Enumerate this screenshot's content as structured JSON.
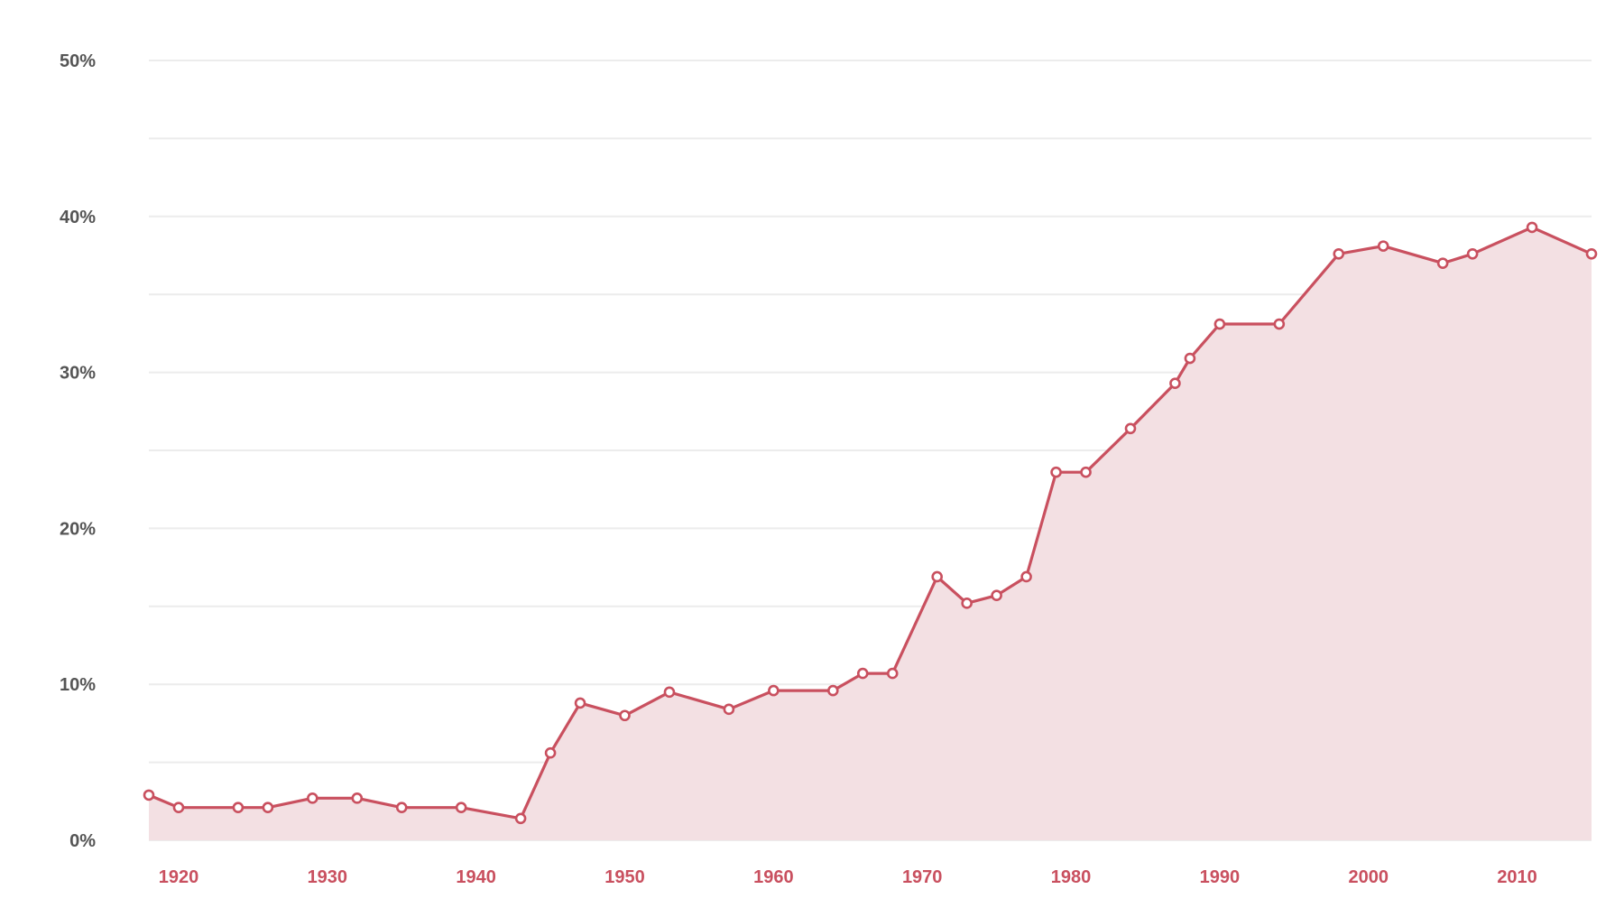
{
  "chart_data": {
    "type": "area",
    "title": "",
    "xlabel": "",
    "ylabel": "",
    "xlim": [
      1918,
      2015
    ],
    "ylim": [
      0,
      50
    ],
    "grid": true,
    "legend": "none",
    "y_ticks": [
      {
        "value": 0,
        "label": "0%"
      },
      {
        "value": 10,
        "label": "10%"
      },
      {
        "value": 20,
        "label": "20%"
      },
      {
        "value": 30,
        "label": "30%"
      },
      {
        "value": 40,
        "label": "40%"
      },
      {
        "value": 50,
        "label": "50%"
      }
    ],
    "y_minor_gridlines": [
      5,
      15,
      25,
      35,
      45
    ],
    "x_ticks": [
      {
        "value": 1920,
        "label": "1920"
      },
      {
        "value": 1930,
        "label": "1930"
      },
      {
        "value": 1940,
        "label": "1940"
      },
      {
        "value": 1950,
        "label": "1950"
      },
      {
        "value": 1960,
        "label": "1960"
      },
      {
        "value": 1970,
        "label": "1970"
      },
      {
        "value": 1980,
        "label": "1980"
      },
      {
        "value": 1990,
        "label": "1990"
      },
      {
        "value": 2000,
        "label": "2000"
      },
      {
        "value": 2010,
        "label": "2010"
      }
    ],
    "series": [
      {
        "points": [
          {
            "x": 1918,
            "y": 2.9
          },
          {
            "x": 1920,
            "y": 2.1
          },
          {
            "x": 1924,
            "y": 2.1
          },
          {
            "x": 1926,
            "y": 2.1
          },
          {
            "x": 1929,
            "y": 2.7
          },
          {
            "x": 1932,
            "y": 2.7
          },
          {
            "x": 1935,
            "y": 2.1
          },
          {
            "x": 1939,
            "y": 2.1
          },
          {
            "x": 1943,
            "y": 1.4
          },
          {
            "x": 1945,
            "y": 5.6
          },
          {
            "x": 1947,
            "y": 8.8
          },
          {
            "x": 1950,
            "y": 8.0
          },
          {
            "x": 1953,
            "y": 9.5
          },
          {
            "x": 1957,
            "y": 8.4
          },
          {
            "x": 1960,
            "y": 9.6
          },
          {
            "x": 1964,
            "y": 9.6
          },
          {
            "x": 1966,
            "y": 10.7
          },
          {
            "x": 1968,
            "y": 10.7
          },
          {
            "x": 1971,
            "y": 16.9
          },
          {
            "x": 1973,
            "y": 15.2
          },
          {
            "x": 1975,
            "y": 15.7
          },
          {
            "x": 1977,
            "y": 16.9
          },
          {
            "x": 1979,
            "y": 23.6
          },
          {
            "x": 1981,
            "y": 23.6
          },
          {
            "x": 1984,
            "y": 26.4
          },
          {
            "x": 1987,
            "y": 29.3
          },
          {
            "x": 1988,
            "y": 30.9
          },
          {
            "x": 1990,
            "y": 33.1
          },
          {
            "x": 1994,
            "y": 33.1
          },
          {
            "x": 1998,
            "y": 37.6
          },
          {
            "x": 2001,
            "y": 38.1
          },
          {
            "x": 2005,
            "y": 37.0
          },
          {
            "x": 2007,
            "y": 37.6
          },
          {
            "x": 2011,
            "y": 39.3
          },
          {
            "x": 2015,
            "y": 37.6
          }
        ]
      }
    ],
    "colors": {
      "line": "#c9505f",
      "fill": "#f3e0e3",
      "marker_fill": "#ffffff",
      "grid": "#ececec",
      "ytick_text": "#555555",
      "xtick_text": "#c9505f"
    }
  }
}
